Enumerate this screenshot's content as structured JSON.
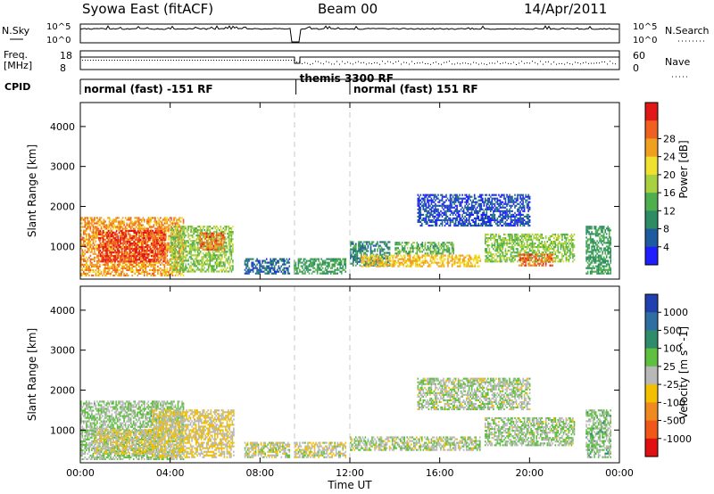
{
  "header": {
    "station": "Syowa East (fitACF)",
    "beam": "Beam 00",
    "date": "14/Apr/2011"
  },
  "status_panels": {
    "nsky_label": "N.Sky",
    "nsky_ticks": [
      "10^5",
      "10^0"
    ],
    "nsearch_label": "N.Search",
    "nsearch_ticks": [
      "10^5",
      "10^0"
    ],
    "freq_label": [
      "Freq.",
      "[MHz]"
    ],
    "freq_ticks": [
      "18",
      "8"
    ],
    "nave_label": "Nave",
    "nave_ticks": [
      "60",
      "0"
    ],
    "cpid_label": "CPID",
    "cpid_segments": [
      {
        "label": "normal (fast) -151 RF",
        "start_h": 0.0,
        "end_h": 9.6
      },
      {
        "label": "themis 3300 RF",
        "start_h": 9.6,
        "end_h": 12.0
      },
      {
        "label": "normal (fast) 151 RF",
        "start_h": 12.0,
        "end_h": 24.0
      }
    ]
  },
  "chart_data": [
    {
      "type": "heatmap",
      "name": "power",
      "xlabel": "",
      "ylabel": "Slant Range [km]",
      "xlim": [
        0,
        24
      ],
      "ylim": [
        180,
        4600
      ],
      "yticks": [
        "1000",
        "2000",
        "3000",
        "4000"
      ],
      "colorbar_label": "Power [dB]",
      "colorbar_ticks": [
        "4",
        "8",
        "12",
        "16",
        "20",
        "24",
        "28"
      ],
      "colorbar_colors": [
        "#1e1eff",
        "#1e5aa0",
        "#2d8c64",
        "#4faf4f",
        "#a8d040",
        "#f0e030",
        "#f0a020",
        "#f06020",
        "#e01818"
      ],
      "colorbar_range": [
        0,
        30
      ],
      "regions": [
        {
          "x0": 0.0,
          "x1": 4.6,
          "y0": 250,
          "y1": 1700,
          "v": 22
        },
        {
          "x0": 0.8,
          "x1": 3.8,
          "y0": 600,
          "y1": 1400,
          "v": 27
        },
        {
          "x0": 4.0,
          "x1": 6.8,
          "y0": 350,
          "y1": 1500,
          "v": 14
        },
        {
          "x0": 5.3,
          "x1": 6.4,
          "y0": 900,
          "y1": 1350,
          "v": 24
        },
        {
          "x0": 7.3,
          "x1": 9.3,
          "y0": 300,
          "y1": 700,
          "v": 6
        },
        {
          "x0": 9.5,
          "x1": 11.8,
          "y0": 300,
          "y1": 700,
          "v": 10
        },
        {
          "x0": 12.0,
          "x1": 13.8,
          "y0": 500,
          "y1": 1100,
          "v": 8
        },
        {
          "x0": 12.5,
          "x1": 17.8,
          "y0": 480,
          "y1": 760,
          "v": 20
        },
        {
          "x0": 14.0,
          "x1": 16.6,
          "y0": 800,
          "y1": 1100,
          "v": 12
        },
        {
          "x0": 15.0,
          "x1": 20.0,
          "y0": 1500,
          "y1": 2300,
          "v": 4
        },
        {
          "x0": 18.0,
          "x1": 22.0,
          "y0": 600,
          "y1": 1300,
          "v": 14
        },
        {
          "x0": 19.5,
          "x1": 21.0,
          "y0": 500,
          "y1": 800,
          "v": 24
        },
        {
          "x0": 22.5,
          "x1": 23.6,
          "y0": 300,
          "y1": 1500,
          "v": 10
        }
      ]
    },
    {
      "type": "heatmap",
      "name": "velocity",
      "xlabel": "Time UT",
      "ylabel": "Slant Range [km]",
      "xlim": [
        0,
        24
      ],
      "ylim": [
        180,
        4600
      ],
      "xticks": [
        "00:00",
        "04:00",
        "08:00",
        "12:00",
        "16:00",
        "20:00",
        "00:00"
      ],
      "yticks": [
        "1000",
        "2000",
        "3000",
        "4000"
      ],
      "colorbar_label": "Velocity [m s^-1]",
      "colorbar_ticks": [
        "1000",
        "500",
        "100",
        "25",
        "-25",
        "-100",
        "-500",
        "-1000"
      ],
      "colorbar_colors": [
        "#2040b0",
        "#2e6ea0",
        "#2f8c6a",
        "#5fbf3f",
        "#b8b8b8",
        "#f2c000",
        "#f08a20",
        "#f05818",
        "#e01010"
      ],
      "colorbar_range": [
        -1300,
        1300
      ],
      "regions": [
        {
          "x0": 0.0,
          "x1": 4.6,
          "y0": 250,
          "y1": 1700,
          "v": 150
        },
        {
          "x0": 0.6,
          "x1": 3.2,
          "y0": 400,
          "y1": 1000,
          "v": -120
        },
        {
          "x0": 3.2,
          "x1": 6.8,
          "y0": 300,
          "y1": 1500,
          "v": -150
        },
        {
          "x0": 7.3,
          "x1": 9.3,
          "y0": 300,
          "y1": 700,
          "v": 0
        },
        {
          "x0": 9.5,
          "x1": 11.8,
          "y0": 300,
          "y1": 700,
          "v": -30
        },
        {
          "x0": 12.0,
          "x1": 17.8,
          "y0": 480,
          "y1": 800,
          "v": 60
        },
        {
          "x0": 15.0,
          "x1": 20.0,
          "y0": 1500,
          "y1": 2300,
          "v": 80
        },
        {
          "x0": 18.0,
          "x1": 22.0,
          "y0": 600,
          "y1": 1300,
          "v": 120
        },
        {
          "x0": 22.5,
          "x1": 23.6,
          "y0": 300,
          "y1": 1500,
          "v": 200
        }
      ]
    }
  ]
}
